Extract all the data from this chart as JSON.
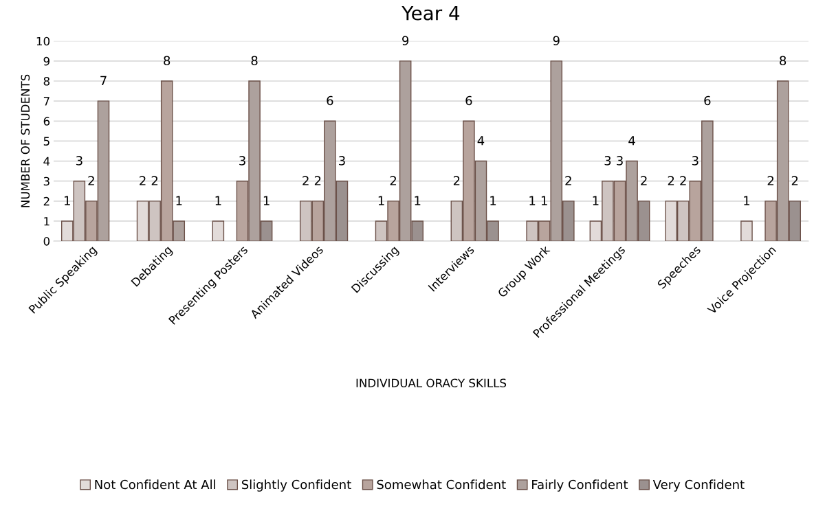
{
  "chart_data": {
    "type": "bar",
    "title": "Year 4",
    "xlabel": "INDIVIDUAL ORACY SKILLS",
    "ylabel": "NUMBER OF STUDENTS",
    "categories": [
      "Public Speaking",
      "Debating",
      "Presenting Posters",
      "Animated Videos",
      "Discussing",
      "Interviews",
      "Group Work",
      "Professional Meetings",
      "Speeches",
      "Voice Projection"
    ],
    "series": [
      {
        "name": "Not Confident At All",
        "color": "#e2dbd9",
        "values": [
          1,
          2,
          1,
          null,
          null,
          null,
          null,
          1,
          2,
          1
        ],
        "value_labels": [
          "1",
          "2",
          "1",
          null,
          null,
          null,
          null,
          "1",
          "2",
          "1"
        ]
      },
      {
        "name": "Slightly Confident",
        "color": "#cec4c1",
        "values": [
          3,
          2,
          null,
          2,
          1,
          2,
          1,
          3,
          2,
          null
        ],
        "value_labels": [
          "3",
          "2",
          null,
          "2",
          "1",
          "2",
          "1",
          "3",
          "2",
          null
        ]
      },
      {
        "name": "Somewhat Confident",
        "color": "#b8a49d",
        "values": [
          2,
          8,
          3,
          2,
          2,
          6,
          1,
          3,
          3,
          2
        ],
        "value_labels": [
          "2",
          "8",
          "3",
          "2",
          "2",
          "6",
          "1",
          "3",
          "3",
          "2"
        ]
      },
      {
        "name": "Fairly Confident",
        "color": "#ada19d",
        "values": [
          7,
          1,
          8,
          6,
          9,
          4,
          9,
          4,
          6,
          8
        ],
        "value_labels": [
          "7",
          "1",
          "8",
          "6",
          "9",
          "4",
          "9",
          "4",
          "6",
          "8"
        ]
      },
      {
        "name": "Very Confident",
        "color": "#9b918f",
        "values": [
          null,
          null,
          1,
          3,
          1,
          1,
          2,
          2,
          null,
          2
        ],
        "value_labels": [
          null,
          null,
          "1",
          "3",
          "1",
          "1",
          "2",
          "2",
          null,
          "2"
        ]
      }
    ],
    "ylim": [
      0,
      10
    ],
    "yticks": [
      0,
      1,
      2,
      3,
      4,
      5,
      6,
      7,
      8,
      9,
      10
    ],
    "grid": "y",
    "legend": "bottom"
  }
}
